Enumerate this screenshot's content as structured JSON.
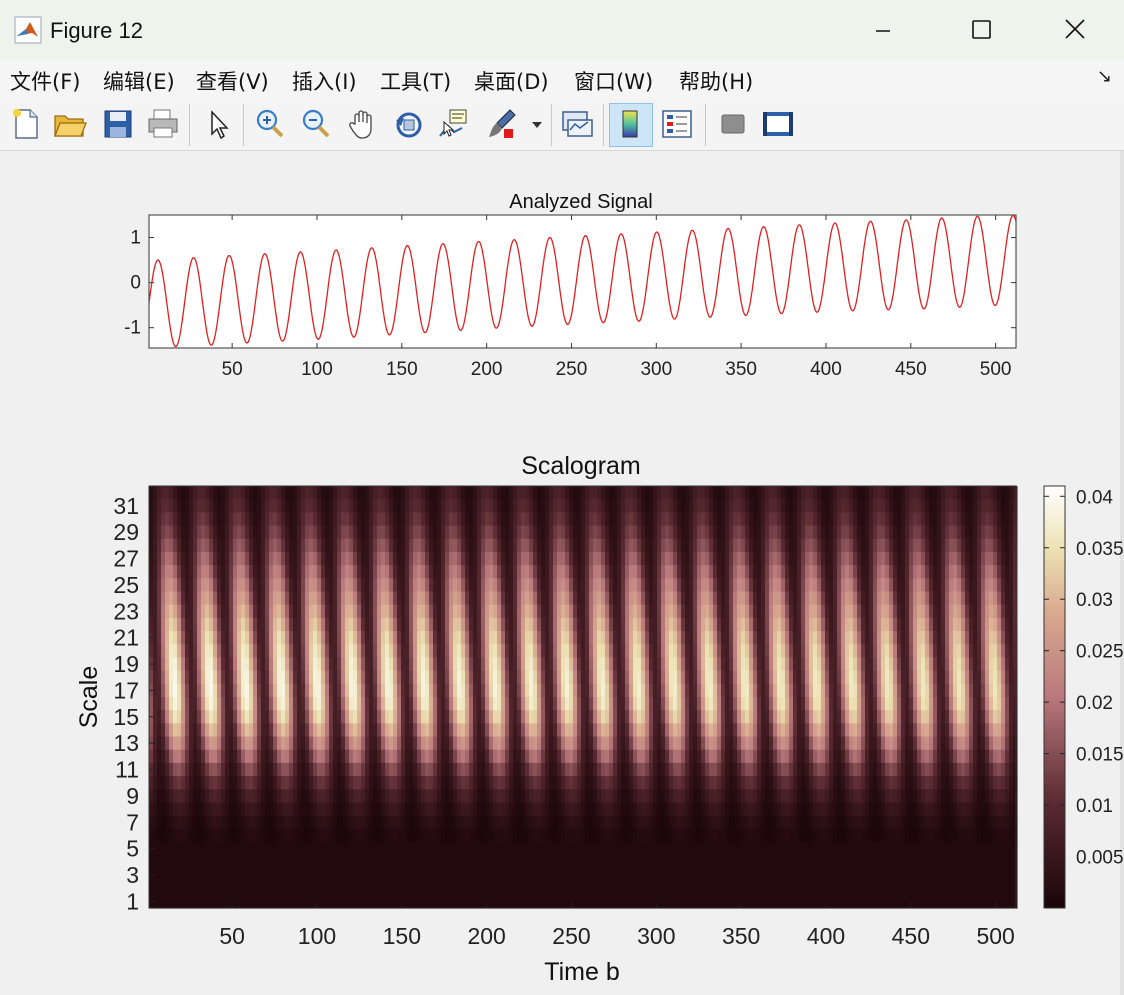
{
  "window": {
    "title": "Figure 12"
  },
  "menu": [
    {
      "id": "file",
      "label": "文件(F)"
    },
    {
      "id": "edit",
      "label": "编辑(E)"
    },
    {
      "id": "view",
      "label": "查看(V)"
    },
    {
      "id": "insert",
      "label": "插入(I)"
    },
    {
      "id": "tools",
      "label": "工具(T)"
    },
    {
      "id": "desktop",
      "label": "桌面(D)"
    },
    {
      "id": "window",
      "label": "窗口(W)"
    },
    {
      "id": "help",
      "label": "帮助(H)"
    }
  ],
  "toolbar_icons": [
    "new-figure-icon",
    "open-file-icon",
    "save-icon",
    "print-icon",
    "select-arrow-icon",
    "zoom-in-icon",
    "zoom-out-icon",
    "pan-hand-icon",
    "rotate-3d-icon",
    "data-cursor-icon",
    "brush-icon",
    "link-plot-icon",
    "insert-colorbar-icon",
    "insert-legend-icon",
    "hide-plot-tools-icon",
    "show-plot-tools-icon"
  ],
  "colors": {
    "signal_line": "#e02020",
    "scalogram_low": "#1a0508",
    "scalogram_mid": "#c08a8a",
    "scalogram_high": "#ffffff"
  },
  "chart_data": [
    {
      "type": "line",
      "title": "Analyzed Signal",
      "xlabel": "",
      "ylabel": "",
      "xlim": [
        1,
        512
      ],
      "ylim": [
        -1.45,
        1.5
      ],
      "x_ticks": [
        50,
        100,
        150,
        200,
        250,
        300,
        350,
        400,
        450,
        500
      ],
      "x_tick_labels": [
        "50",
        "100",
        "150",
        "200",
        "250",
        "300",
        "350",
        "400",
        "450",
        "500"
      ],
      "y_ticks": [
        1,
        0,
        -1
      ],
      "y_tick_labels": [
        "1",
        "0",
        "-1"
      ],
      "series": [
        {
          "x": [
            1,
            21,
            42,
            63,
            84,
            105,
            126,
            147,
            168,
            189,
            210,
            231,
            252,
            273,
            294,
            315,
            336,
            357,
            378,
            399,
            420,
            441,
            462,
            483,
            504,
            512
          ],
          "y": [
            -0.05,
            -1.42,
            -1.38,
            -1.33,
            -1.29,
            -1.25,
            -1.2,
            -1.15,
            -1.1,
            -1.05,
            -1.0,
            -0.96,
            -0.92,
            -0.88,
            -0.85,
            -0.8,
            -0.76,
            -0.72,
            -0.68,
            -0.65,
            -0.62,
            -0.6,
            -0.58,
            -0.54,
            -0.5,
            1.45
          ]
        },
        {
          "x": [
            5,
            26,
            47,
            68,
            89,
            110,
            131,
            152,
            173,
            194,
            215,
            236,
            257,
            278,
            299,
            320,
            341,
            362,
            383,
            404,
            425,
            446,
            467,
            488,
            509
          ],
          "y": [
            0.5,
            0.55,
            0.6,
            0.64,
            0.68,
            0.72,
            0.77,
            0.82,
            0.86,
            0.91,
            0.95,
            1.0,
            1.04,
            1.08,
            1.12,
            1.16,
            1.2,
            1.24,
            1.28,
            1.32,
            1.36,
            1.39,
            1.43,
            1.47,
            1.49
          ]
        }
      ],
      "period": 21
    },
    {
      "type": "heatmap",
      "title": "Scalogram",
      "xlabel": "Time b",
      "ylabel": "Scale",
      "xlim": [
        1,
        512
      ],
      "ylim": [
        1,
        32
      ],
      "x_ticks": [
        50,
        100,
        150,
        200,
        250,
        300,
        350,
        400,
        450,
        500
      ],
      "x_tick_labels": [
        "50",
        "100",
        "150",
        "200",
        "250",
        "300",
        "350",
        "400",
        "450",
        "500"
      ],
      "y_ticks": [
        31,
        29,
        27,
        25,
        23,
        21,
        19,
        17,
        15,
        13,
        11,
        9,
        7,
        5,
        3,
        1
      ],
      "y_tick_labels": [
        "31",
        "29",
        "27",
        "25",
        "23",
        "21",
        "19",
        "17",
        "15",
        "13",
        "11",
        "9",
        "7",
        "5",
        "3",
        "1"
      ],
      "scales": 32,
      "peak_scale": 17,
      "max_value": 0.041,
      "energy_band": {
        "low_scale": 6,
        "high_scale": 31
      },
      "oscillation_period": 21,
      "colorbar": {
        "min": 0,
        "max": 0.041,
        "ticks": [
          0.005,
          0.01,
          0.015,
          0.02,
          0.025,
          0.03,
          0.035,
          0.04
        ],
        "tick_labels": [
          "0.005",
          "0.01",
          "0.015",
          "0.02",
          "0.025",
          "0.03",
          "0.035",
          "0.04"
        ]
      }
    }
  ]
}
